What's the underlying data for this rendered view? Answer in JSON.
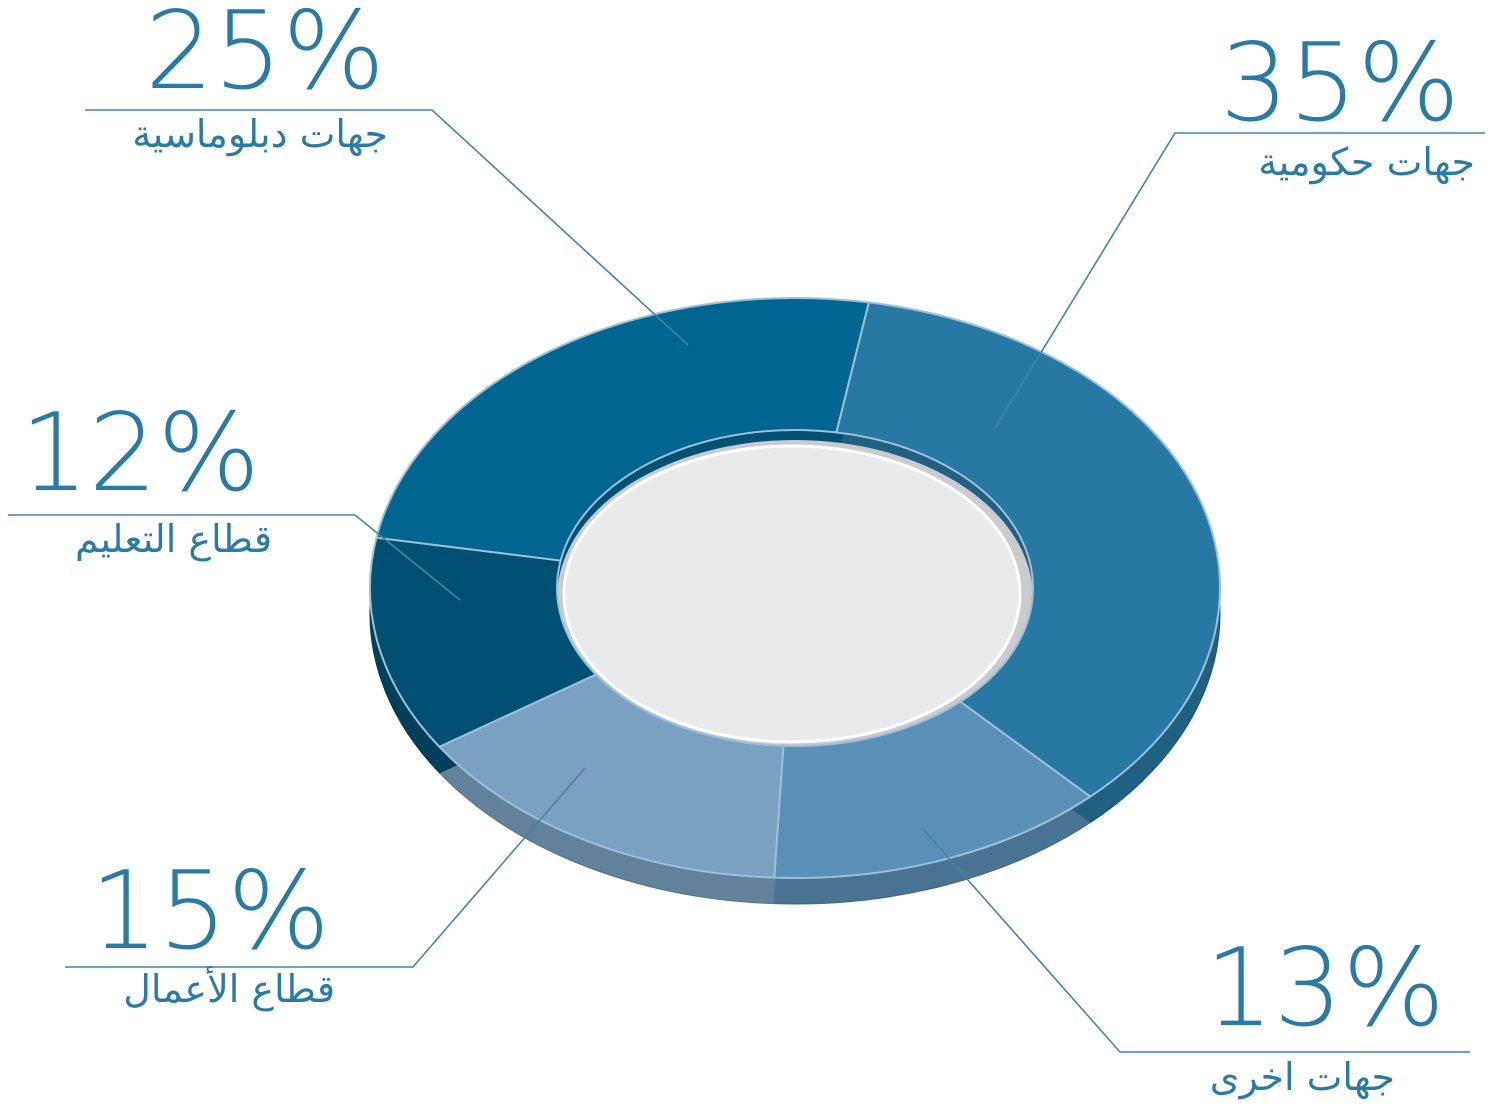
{
  "chart_data": {
    "type": "donut",
    "categories": [
      "جهات حكومية",
      "جهات اخرى",
      "قطاع الأعمال",
      "قطاع التعليم",
      "جهات دبلوماسية"
    ],
    "values": [
      35,
      13,
      15,
      12,
      25
    ],
    "value_labels": [
      "35%",
      "13%",
      "15%",
      "12%",
      "25%"
    ],
    "colors": [
      "#2878a4",
      "#5a90b7",
      "#7aa1c2",
      "#005073",
      "#006591"
    ]
  }
}
